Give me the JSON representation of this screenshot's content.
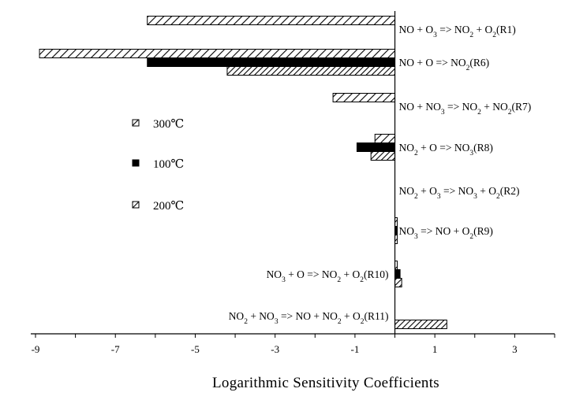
{
  "chart_data": {
    "type": "bar",
    "orientation": "horizontal",
    "xlabel": "Logarithmic Sensitivity Coefficients",
    "xlim": [
      -9,
      4
    ],
    "xticks": [
      -9,
      -7,
      -5,
      -3,
      -1,
      1,
      3
    ],
    "grid": false,
    "legend_position": "left",
    "series": [
      {
        "name": "300℃",
        "pattern": "hatch-open",
        "color": "#000000"
      },
      {
        "name": "100℃",
        "pattern": "solid",
        "color": "#000000"
      },
      {
        "name": "200℃",
        "pattern": "hatch-dense",
        "color": "#000000"
      }
    ],
    "categories": [
      {
        "id": "R1",
        "label_parts": [
          [
            "NO + O",
            ""
          ],
          [
            "3",
            "sub"
          ],
          [
            " => NO",
            ""
          ],
          [
            "2",
            "sub"
          ],
          [
            " + O",
            ""
          ],
          [
            "2",
            "sub"
          ],
          [
            "(R1)",
            ""
          ]
        ],
        "label_side": "right",
        "values": {
          "300℃": -6.2,
          "100℃": 0,
          "200℃": 0
        }
      },
      {
        "id": "R6",
        "label_parts": [
          [
            "NO + O => NO",
            ""
          ],
          [
            "2",
            "sub"
          ],
          [
            "(R6)",
            ""
          ]
        ],
        "label_side": "right",
        "values": {
          "300℃": -8.9,
          "100℃": -6.2,
          "200℃": -4.2
        }
      },
      {
        "id": "R7",
        "label_parts": [
          [
            "NO + NO",
            ""
          ],
          [
            "3",
            "sub"
          ],
          [
            " => NO",
            ""
          ],
          [
            "2",
            "sub"
          ],
          [
            " + NO",
            ""
          ],
          [
            "2",
            "sub"
          ],
          [
            "(R7)",
            ""
          ]
        ],
        "label_side": "right",
        "values": {
          "300℃": -1.55,
          "100℃": 0,
          "200℃": 0
        }
      },
      {
        "id": "R8",
        "label_parts": [
          [
            "NO",
            ""
          ],
          [
            "2",
            "sub"
          ],
          [
            " + O => NO",
            ""
          ],
          [
            "3",
            "sub"
          ],
          [
            "(R8)",
            ""
          ]
        ],
        "label_side": "right",
        "values": {
          "300℃": -0.5,
          "100℃": -0.95,
          "200℃": -0.6
        }
      },
      {
        "id": "R2",
        "label_parts": [
          [
            "NO",
            ""
          ],
          [
            "2",
            "sub"
          ],
          [
            " + O",
            ""
          ],
          [
            "3",
            "sub"
          ],
          [
            " => NO",
            ""
          ],
          [
            "3",
            "sub"
          ],
          [
            " + O",
            ""
          ],
          [
            "2",
            "sub"
          ],
          [
            "(R2)",
            ""
          ]
        ],
        "label_side": "right",
        "values": {
          "300℃": 0,
          "100℃": 0,
          "200℃": 0
        }
      },
      {
        "id": "R9",
        "label_parts": [
          [
            "NO",
            ""
          ],
          [
            "3",
            "sub"
          ],
          [
            "  => NO + O",
            ""
          ],
          [
            "2",
            "sub"
          ],
          [
            "(R9)",
            ""
          ]
        ],
        "label_side": "right",
        "values": {
          "300℃": 0.03,
          "100℃": 0.02,
          "200℃": 0.03
        }
      },
      {
        "id": "R10",
        "label_parts": [
          [
            "NO",
            ""
          ],
          [
            "3",
            "sub"
          ],
          [
            "  + O => NO",
            ""
          ],
          [
            "2",
            "sub"
          ],
          [
            " + O",
            ""
          ],
          [
            "2",
            "sub"
          ],
          [
            "(R10)",
            ""
          ]
        ],
        "label_side": "left",
        "values": {
          "300℃": 0.05,
          "100℃": 0.13,
          "200℃": 0.17
        }
      },
      {
        "id": "R11",
        "label_parts": [
          [
            "NO",
            ""
          ],
          [
            "2",
            "sub"
          ],
          [
            "  + NO",
            ""
          ],
          [
            "3",
            "sub"
          ],
          [
            " => NO + NO",
            ""
          ],
          [
            "2",
            "sub"
          ],
          [
            " + O",
            ""
          ],
          [
            "2",
            "sub"
          ],
          [
            "(R11)",
            ""
          ]
        ],
        "label_side": "left",
        "values": {
          "300℃": 0,
          "100℃": 0,
          "200℃": 1.3
        }
      }
    ]
  }
}
